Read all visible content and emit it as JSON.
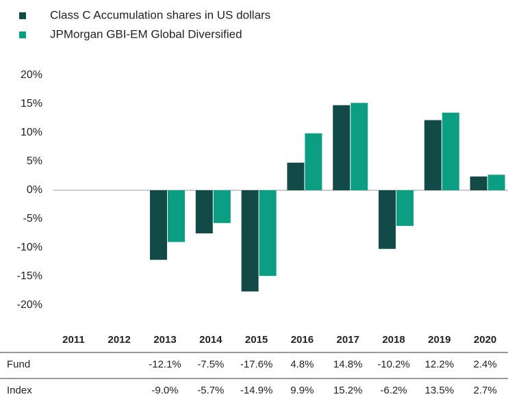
{
  "chart_data": {
    "type": "bar",
    "categories": [
      "2011",
      "2012",
      "2013",
      "2014",
      "2015",
      "2016",
      "2017",
      "2018",
      "2019",
      "2020"
    ],
    "series": [
      {
        "name": "Class C Accumulation shares in US dollars",
        "color": "#124a48",
        "values": [
          null,
          null,
          -12.1,
          -7.5,
          -17.6,
          4.8,
          14.8,
          -10.2,
          12.2,
          2.4
        ],
        "value_labels": [
          null,
          null,
          "-12.1%",
          "-7.5%",
          "-17.6%",
          "4.8%",
          "14.8%",
          "-10.2%",
          "12.2%",
          "2.4%"
        ]
      },
      {
        "name": "JPMorgan GBI-EM Global Diversified",
        "color": "#0c9e83",
        "values": [
          null,
          null,
          -9.0,
          -5.7,
          -14.9,
          9.9,
          15.2,
          -6.2,
          13.5,
          2.7
        ],
        "value_labels": [
          null,
          null,
          "-9.0%",
          "-5.7%",
          "-14.9%",
          "9.9%",
          "15.2%",
          "-6.2%",
          "13.5%",
          "2.7%"
        ]
      }
    ],
    "row_labels": [
      "Fund",
      "Index"
    ],
    "ylim": [
      -20,
      20
    ],
    "yticks": [
      {
        "value": 20,
        "label": "20%"
      },
      {
        "value": 15,
        "label": "15%"
      },
      {
        "value": 10,
        "label": "10%"
      },
      {
        "value": 5,
        "label": "5%"
      },
      {
        "value": 0,
        "label": "0%"
      },
      {
        "value": -5,
        "label": "-5%"
      },
      {
        "value": -10,
        "label": "-10%"
      },
      {
        "value": -15,
        "label": "-15%"
      },
      {
        "value": -20,
        "label": "-20%"
      }
    ],
    "grid": false,
    "category_color": "#6b1d4a"
  }
}
